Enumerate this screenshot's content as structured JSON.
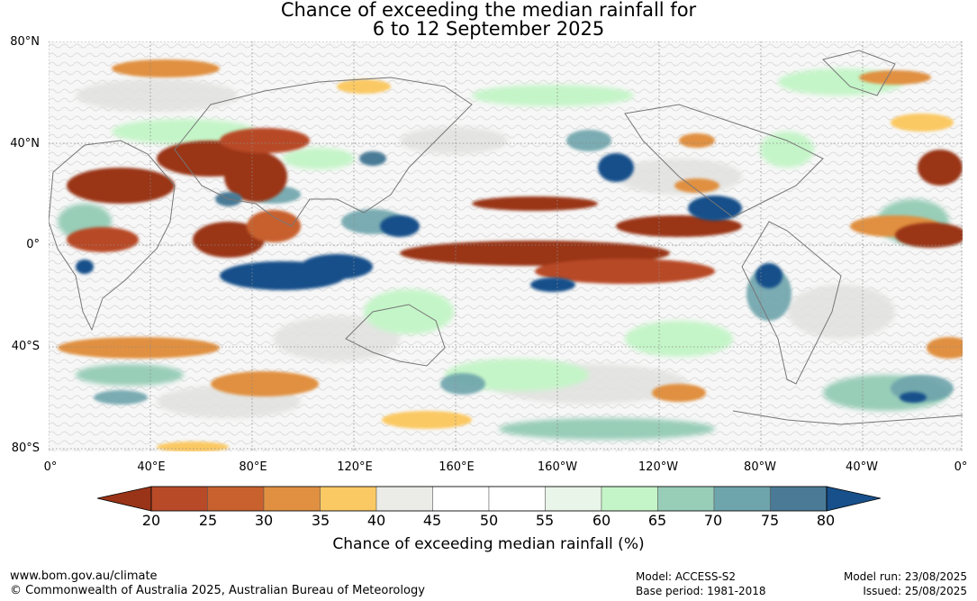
{
  "title": {
    "line1": "Chance of exceeding the median rainfall for",
    "line2": "6 to 12 September 2025"
  },
  "axes": {
    "lat_labels": [
      "80°N",
      "40°N",
      "0°",
      "40°S",
      "80°S"
    ],
    "lon_labels": [
      "0°",
      "40°E",
      "80°E",
      "120°E",
      "160°E",
      "160°W",
      "120°W",
      "80°W",
      "40°W",
      "0°"
    ]
  },
  "colorbar": {
    "ticks": [
      "20",
      "25",
      "30",
      "35",
      "40",
      "45",
      "50",
      "55",
      "60",
      "65",
      "70",
      "75",
      "80"
    ],
    "colors": [
      "#9a3418",
      "#b84a28",
      "#c8612e",
      "#e09040",
      "#fbc964",
      "#ebebe8",
      "#ffffff",
      "#ffffff",
      "#e8f5e8",
      "#c4f5c8",
      "#98cdb8",
      "#6ea4ac",
      "#4a7a96",
      "#17508a"
    ],
    "title": "Chance of exceeding median rainfall (%)"
  },
  "map_colors": {
    "ocean": "#f7f7f7",
    "land_line": "#777777",
    "grid_line": "#8a8a8a"
  },
  "footer": {
    "url": "www.bom.gov.au/climate",
    "copyright": "© Commonwealth of Australia 2025, Australian Bureau of Meteorology",
    "model": "Model: ACCESS-S2",
    "base_period": "Base period: 1981-2018",
    "model_run": "Model run: 23/08/2025",
    "issued": "Issued: 25/08/2025"
  }
}
